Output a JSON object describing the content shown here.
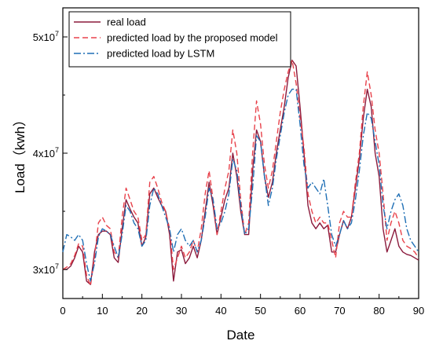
{
  "chart_data": {
    "type": "line",
    "xlabel": "Date",
    "ylabel": "Load（kwh）",
    "xlim": [
      0,
      90
    ],
    "ylim": [
      27500000.0,
      52500000.0
    ],
    "x_ticks": [
      "0",
      "10",
      "20",
      "30",
      "40",
      "50",
      "60",
      "70",
      "80",
      "90"
    ],
    "y_ticks": [
      {
        "value": 30000000.0,
        "base": "3x10",
        "exp": "7"
      },
      {
        "value": 40000000.0,
        "base": "4x10",
        "exp": "7"
      },
      {
        "value": 50000000.0,
        "base": "5x10",
        "exp": "7"
      }
    ],
    "legend_position": "top-left",
    "grid": false,
    "x": [
      0,
      1,
      2,
      3,
      4,
      5,
      6,
      7,
      8,
      9,
      10,
      11,
      12,
      13,
      14,
      15,
      16,
      17,
      18,
      19,
      20,
      21,
      22,
      23,
      24,
      25,
      26,
      27,
      28,
      29,
      30,
      31,
      32,
      33,
      34,
      35,
      36,
      37,
      38,
      39,
      40,
      41,
      42,
      43,
      44,
      45,
      46,
      47,
      48,
      49,
      50,
      51,
      52,
      53,
      54,
      55,
      56,
      57,
      58,
      59,
      60,
      61,
      62,
      63,
      64,
      65,
      66,
      67,
      68,
      69,
      70,
      71,
      72,
      73,
      74,
      75,
      76,
      77,
      78,
      79,
      80,
      81,
      82,
      83,
      84,
      85,
      86,
      87,
      88,
      89,
      90
    ],
    "series": [
      {
        "name": "real load",
        "color": "#8b1a3c",
        "dash": "solid",
        "values": [
          30000000,
          30000000,
          30300000,
          31000000,
          32000000,
          31500000,
          29000000,
          28700000,
          31500000,
          33000000,
          33300000,
          33300000,
          33000000,
          31000000,
          30600000,
          33500000,
          36000000,
          35200000,
          34500000,
          34000000,
          32000000,
          32800000,
          36500000,
          37000000,
          36200000,
          35500000,
          35000000,
          33000000,
          29000000,
          31500000,
          31700000,
          30500000,
          31000000,
          32000000,
          31000000,
          32500000,
          35000000,
          37500000,
          35500000,
          33000000,
          34500000,
          36000000,
          37000000,
          40000000,
          38000000,
          35000000,
          33000000,
          33000000,
          38500000,
          42000000,
          41000000,
          38000000,
          36200000,
          37500000,
          40000000,
          42000000,
          44000000,
          46500000,
          48000000,
          47500000,
          44000000,
          40000000,
          35500000,
          34000000,
          33500000,
          34000000,
          33500000,
          33800000,
          31500000,
          31500000,
          33000000,
          34200000,
          33500000,
          34500000,
          37000000,
          39500000,
          43000000,
          45500000,
          44000000,
          40000000,
          38000000,
          33500000,
          31500000,
          32500000,
          33500000,
          32000000,
          31500000,
          31300000,
          31200000,
          31000000,
          30800000
        ]
      },
      {
        "name": "predicted load by the proposed model",
        "color": "#e8424b",
        "dash": "dashed",
        "values": [
          30000000,
          30200000,
          30500000,
          31200000,
          32200000,
          32000000,
          29500000,
          28600000,
          31000000,
          34000000,
          34500000,
          33800000,
          33500000,
          31500000,
          31000000,
          34500000,
          37000000,
          36000000,
          35000000,
          34500000,
          32500000,
          33000000,
          37500000,
          38000000,
          37000000,
          35800000,
          35000000,
          33500000,
          30000000,
          31000000,
          32000000,
          31000000,
          31500000,
          32500000,
          31500000,
          33500000,
          36500000,
          38500000,
          36000000,
          33000000,
          35000000,
          37000000,
          38500000,
          42000000,
          40000000,
          36000000,
          33000000,
          34000000,
          40000000,
          44500000,
          42500000,
          39000000,
          37000000,
          38500000,
          41000000,
          43500000,
          45500000,
          47000000,
          48000000,
          46000000,
          43000000,
          40500000,
          36500000,
          35000000,
          34000000,
          34500000,
          34000000,
          34000000,
          32500000,
          31000000,
          34000000,
          35000000,
          34500000,
          34500000,
          37500000,
          40000000,
          44000000,
          47000000,
          45000000,
          42000000,
          40000000,
          36500000,
          32500000,
          34000000,
          35000000,
          34000000,
          32500000,
          32000000,
          31800000,
          31500000,
          31000000
        ]
      },
      {
        "name": "predicted load by LSTM",
        "color": "#1f6fb5",
        "dash": "dashdot",
        "values": [
          31500000,
          33000000,
          32800000,
          32500000,
          33000000,
          32500000,
          30500000,
          29000000,
          30500000,
          32800000,
          33500000,
          33300000,
          33000000,
          32000000,
          31000000,
          33000000,
          35500000,
          35000000,
          34000000,
          33500000,
          32000000,
          32500000,
          35500000,
          37000000,
          36500000,
          35500000,
          34500000,
          33500000,
          31500000,
          33000000,
          33500000,
          32500000,
          32000000,
          32500000,
          31500000,
          32500000,
          34500000,
          37000000,
          36000000,
          33500000,
          34000000,
          35000000,
          36500000,
          39500000,
          38500000,
          35500000,
          33000000,
          33500000,
          37000000,
          41500000,
          41000000,
          38000000,
          35500000,
          37000000,
          39500000,
          41500000,
          43500000,
          45000000,
          45500000,
          45500000,
          42500000,
          39000000,
          37000000,
          37500000,
          37000000,
          36500000,
          37800000,
          35500000,
          33000000,
          32000000,
          33000000,
          34200000,
          33500000,
          34000000,
          36000000,
          38500000,
          41500000,
          43500000,
          43000000,
          41000000,
          39000000,
          35500000,
          33500000,
          35000000,
          36000000,
          36500000,
          35500000,
          33500000,
          32500000,
          32000000,
          31500000
        ]
      }
    ]
  }
}
